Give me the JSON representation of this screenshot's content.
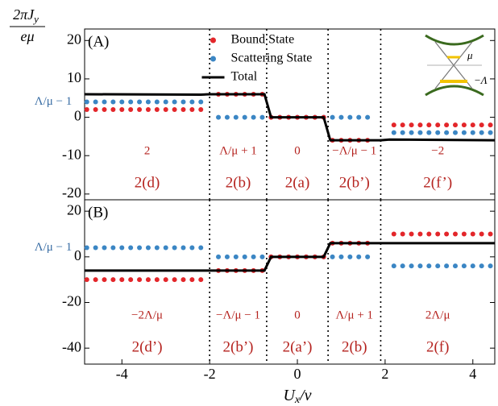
{
  "chart_data": [
    {
      "type": "scatter",
      "panel_label": "(A)",
      "y_annotation": {
        "text": "Λ/μ − 1",
        "y": 4
      },
      "ylabel": {
        "numerator": "2πJ",
        "numerator_sub": "y",
        "denominator": "eμ"
      },
      "xlim": [
        -4.85,
        4.5
      ],
      "ylim": [
        -21.5,
        23
      ],
      "yticks": [
        -20,
        -10,
        0,
        10,
        20
      ],
      "boundaries": [
        -2,
        -0.7,
        0.7,
        1.9
      ],
      "legend": "upper center",
      "inset_labels": [
        "μ",
        "−Λ"
      ],
      "x": [
        -4.8,
        -4.6,
        -4.4,
        -4.2,
        -4.0,
        -3.8,
        -3.6,
        -3.4,
        -3.2,
        -3.0,
        -2.8,
        -2.6,
        -2.4,
        -2.2,
        -1.8,
        -1.6,
        -1.4,
        -1.2,
        -1.0,
        -0.8,
        -0.6,
        -0.4,
        -0.2,
        0,
        0.2,
        0.4,
        0.6,
        0.8,
        1.0,
        1.2,
        1.4,
        1.6,
        2.2,
        2.4,
        2.6,
        2.8,
        3.0,
        3.2,
        3.4,
        3.6,
        3.8,
        4.0,
        4.2,
        4.4
      ],
      "series": [
        {
          "name": "Bound State",
          "color": "#e3262a",
          "values": [
            2,
            2,
            2,
            2,
            2,
            2,
            2,
            2,
            2,
            2,
            2,
            2,
            2,
            2,
            6,
            6,
            6,
            6,
            6,
            6,
            0,
            0,
            0,
            0,
            0,
            0,
            0,
            -6,
            -6,
            -6,
            -6,
            -6,
            -2,
            -2,
            -2,
            -2,
            -2,
            -2,
            -2,
            -2,
            -2,
            -2,
            -2,
            -2
          ]
        },
        {
          "name": "Scattering State",
          "color": "#3b86c4",
          "values": [
            4,
            4,
            4,
            4,
            4,
            4,
            4,
            4,
            4,
            4,
            4,
            4,
            4,
            4,
            0,
            0,
            0,
            0,
            0,
            0,
            0,
            0,
            0,
            0,
            0,
            0,
            0,
            0,
            0,
            0,
            0,
            0,
            -4,
            -4,
            -4,
            -4,
            -4,
            -4,
            -4,
            -4,
            -4,
            -4,
            -4,
            -4
          ]
        }
      ],
      "total": {
        "name": "Total",
        "color": "#000000",
        "x": [
          -4.85,
          -2.2,
          -2.0,
          -0.75,
          -0.6,
          0.6,
          0.75,
          1.9,
          2.1,
          4.5
        ],
        "values": [
          6,
          5.9,
          6,
          6,
          0,
          0,
          -6,
          -6,
          -5.8,
          -6
        ]
      },
      "region_values": [
        "2",
        "Λ/μ + 1",
        "0",
        "−Λ/μ − 1",
        "−2"
      ],
      "region_labels": [
        "2(d)",
        "2(b)",
        "2(a)",
        "2(b’)",
        "2(f’)"
      ]
    },
    {
      "type": "scatter",
      "panel_label": "(B)",
      "y_annotation": {
        "text": "Λ/μ − 1",
        "y": 4
      },
      "xlabel": {
        "main": "U",
        "sub": "x",
        "rest": "/v"
      },
      "xlim": [
        -4.85,
        4.5
      ],
      "xticks": [
        -4,
        -2,
        0,
        2,
        4
      ],
      "ylim": [
        -47,
        25
      ],
      "yticks": [
        -40,
        -20,
        0,
        20
      ],
      "boundaries": [
        -2,
        -0.7,
        0.7,
        1.9
      ],
      "x": [
        -4.8,
        -4.6,
        -4.4,
        -4.2,
        -4.0,
        -3.8,
        -3.6,
        -3.4,
        -3.2,
        -3.0,
        -2.8,
        -2.6,
        -2.4,
        -2.2,
        -1.8,
        -1.6,
        -1.4,
        -1.2,
        -1.0,
        -0.8,
        -0.6,
        -0.4,
        -0.2,
        0,
        0.2,
        0.4,
        0.6,
        0.8,
        1.0,
        1.2,
        1.4,
        1.6,
        2.2,
        2.4,
        2.6,
        2.8,
        3.0,
        3.2,
        3.4,
        3.6,
        3.8,
        4.0,
        4.2,
        4.4
      ],
      "series": [
        {
          "color": "#e3262a",
          "values": [
            -10,
            -10,
            -10,
            -10,
            -10,
            -10,
            -10,
            -10,
            -10,
            -10,
            -10,
            -10,
            -10,
            -10,
            -6,
            -6,
            -6,
            -6,
            -6,
            -6,
            0,
            0,
            0,
            0,
            0,
            0,
            0,
            6,
            6,
            6,
            6,
            6,
            10,
            10,
            10,
            10,
            10,
            10,
            10,
            10,
            10,
            10,
            10,
            10
          ]
        },
        {
          "color": "#3b86c4",
          "values": [
            4,
            4,
            4,
            4,
            4,
            4,
            4,
            4,
            4,
            4,
            4,
            4,
            4,
            4,
            0,
            0,
            0,
            0,
            0,
            0,
            0,
            0,
            0,
            0,
            0,
            0,
            0,
            0,
            0,
            0,
            0,
            0,
            -4,
            -4,
            -4,
            -4,
            -4,
            -4,
            -4,
            -4,
            -4,
            -4,
            -4,
            -4
          ]
        }
      ],
      "total": {
        "color": "#000000",
        "x": [
          -4.85,
          -2.2,
          -2.0,
          -0.75,
          -0.6,
          0.6,
          0.75,
          1.9,
          2.1,
          4.5
        ],
        "values": [
          -6,
          -6,
          -6,
          -6,
          0,
          0,
          6,
          6,
          6,
          6
        ]
      },
      "region_values": [
        "−2Λ/μ",
        "−Λ/μ − 1",
        "0",
        "Λ/μ + 1",
        "2Λ/μ"
      ],
      "region_labels": [
        "2(d’)",
        "2(b’)",
        "2(a’)",
        "2(b)",
        "2(f)"
      ]
    }
  ]
}
